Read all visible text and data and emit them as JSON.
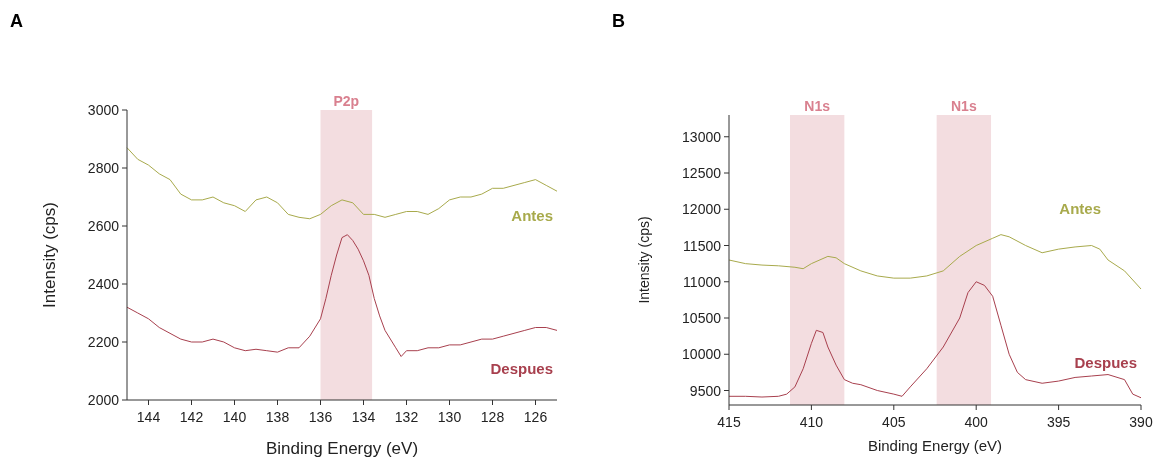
{
  "chart_data": [
    {
      "type": "line",
      "title": "A",
      "xlabel": "Binding Energy (eV)",
      "ylabel": "Intensity (cps)",
      "xlim": [
        145,
        125
      ],
      "xticks": [
        144,
        142,
        140,
        138,
        136,
        134,
        132,
        130,
        128,
        126
      ],
      "ylim": [
        2000,
        3000
      ],
      "yticks": [
        2000,
        2200,
        2400,
        2600,
        2800,
        3000
      ],
      "bands": [
        {
          "axis": "x",
          "from": 136,
          "to": 133.6,
          "label": "P2p",
          "color": "#f3dde0"
        }
      ],
      "series": [
        {
          "name": "Antes",
          "color": "#a8aa4c",
          "x": [
            145,
            144.5,
            144,
            143.5,
            143,
            142.5,
            142,
            141.5,
            141,
            140.5,
            140,
            139.5,
            139,
            138.5,
            138,
            137.5,
            137,
            136.5,
            136,
            135.5,
            135,
            134.5,
            134,
            133.5,
            133,
            132.5,
            132,
            131.5,
            131,
            130.5,
            130,
            129.5,
            129,
            128.5,
            128,
            127.5,
            127,
            126.5,
            126,
            125.5,
            125
          ],
          "values": [
            2870,
            2830,
            2810,
            2780,
            2760,
            2710,
            2690,
            2690,
            2700,
            2680,
            2670,
            2650,
            2690,
            2700,
            2680,
            2640,
            2630,
            2625,
            2640,
            2670,
            2690,
            2680,
            2640,
            2640,
            2630,
            2640,
            2650,
            2650,
            2640,
            2660,
            2690,
            2700,
            2700,
            2710,
            2730,
            2730,
            2740,
            2750,
            2760,
            2740,
            2720
          ]
        },
        {
          "name": "Despues",
          "color": "#a8404e",
          "x": [
            145,
            144.5,
            144,
            143.5,
            143,
            142.5,
            142,
            141.5,
            141,
            140.5,
            140,
            139.5,
            139,
            138.5,
            138,
            137.5,
            137,
            136.5,
            136,
            135.75,
            135.5,
            135.25,
            135,
            134.75,
            134.5,
            134.25,
            134,
            133.75,
            133.5,
            133.25,
            133,
            132.5,
            132.25,
            132,
            131.5,
            131,
            130.5,
            130,
            129.5,
            129,
            128.5,
            128,
            127.5,
            127,
            126.5,
            126,
            125.5,
            125
          ],
          "values": [
            2320,
            2300,
            2280,
            2250,
            2230,
            2210,
            2200,
            2200,
            2210,
            2200,
            2180,
            2170,
            2175,
            2170,
            2165,
            2180,
            2180,
            2220,
            2280,
            2350,
            2430,
            2500,
            2560,
            2570,
            2550,
            2520,
            2480,
            2430,
            2350,
            2290,
            2240,
            2180,
            2150,
            2170,
            2170,
            2180,
            2180,
            2190,
            2190,
            2200,
            2210,
            2210,
            2220,
            2230,
            2240,
            2250,
            2250,
            2240
          ]
        }
      ]
    },
    {
      "type": "line",
      "title": "B",
      "xlabel": "Binding Energy (eV)",
      "ylabel": "Intensity (cps)",
      "xlim": [
        415,
        390
      ],
      "xticks": [
        415,
        410,
        405,
        400,
        395,
        390
      ],
      "ylim": [
        9300,
        13300
      ],
      "yticks": [
        9500,
        10000,
        10500,
        11000,
        11500,
        12000,
        12500,
        13000
      ],
      "bands": [
        {
          "axis": "x",
          "from": 411.3,
          "to": 408,
          "label": "N1s",
          "color": "#f3dde0"
        },
        {
          "axis": "x",
          "from": 402.4,
          "to": 399.1,
          "label": "N1s",
          "color": "#f3dde0"
        }
      ],
      "series": [
        {
          "name": "Antes",
          "color": "#a8aa4c",
          "x": [
            415,
            414,
            413,
            412,
            411,
            410.5,
            410,
            409,
            408.5,
            408,
            407,
            406,
            405,
            404,
            403,
            402,
            401,
            400,
            399,
            398.5,
            398,
            397,
            396,
            395,
            394,
            393,
            392.5,
            392,
            391,
            390
          ],
          "values": [
            11300,
            11250,
            11230,
            11220,
            11200,
            11180,
            11250,
            11350,
            11330,
            11250,
            11150,
            11080,
            11050,
            11050,
            11080,
            11150,
            11350,
            11500,
            11600,
            11650,
            11620,
            11500,
            11400,
            11450,
            11480,
            11500,
            11450,
            11300,
            11150,
            10900
          ]
        },
        {
          "name": "Despues",
          "color": "#a8404e",
          "x": [
            415,
            414,
            413,
            412,
            411.5,
            411,
            410.5,
            410,
            409.7,
            409.3,
            409,
            408.5,
            408,
            407.5,
            407,
            406,
            405,
            404.5,
            404,
            403,
            402,
            401,
            400.5,
            400,
            399.5,
            399,
            398.5,
            398,
            397.5,
            397,
            396,
            395,
            394,
            393,
            392,
            391,
            390.5,
            390
          ],
          "values": [
            9420,
            9420,
            9410,
            9420,
            9450,
            9550,
            9800,
            10150,
            10330,
            10300,
            10100,
            9850,
            9650,
            9600,
            9580,
            9500,
            9450,
            9420,
            9550,
            9800,
            10100,
            10500,
            10850,
            11000,
            10950,
            10800,
            10400,
            10000,
            9750,
            9650,
            9600,
            9630,
            9680,
            9700,
            9720,
            9650,
            9450,
            9400
          ]
        }
      ]
    }
  ]
}
